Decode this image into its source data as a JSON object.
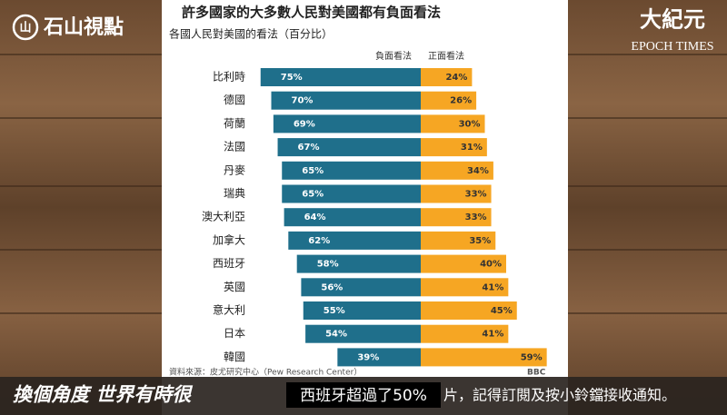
{
  "logo": "石山視點",
  "brand": {
    "chinese": "大紀元",
    "english": "EPOCH TIMES"
  },
  "chart_data": {
    "type": "bar",
    "title": "許多國家的大多數人民對美國都有負面看法",
    "subtitle": "各國人民對美國的看法（百分比）",
    "categories": [
      "比利時",
      "德國",
      "荷蘭",
      "法國",
      "丹麥",
      "瑞典",
      "澳大利亞",
      "加拿大",
      "西班牙",
      "英國",
      "意大利",
      "日本",
      "韓國"
    ],
    "series": [
      {
        "name": "負面看法",
        "color": "#1f6f8b",
        "values": [
          75,
          70,
          69,
          67,
          65,
          65,
          64,
          62,
          58,
          56,
          55,
          54,
          39
        ],
        "value_labels": [
          "75%",
          "70%",
          "69%",
          "67%",
          "65%",
          "65%",
          "64%",
          "62%",
          "58%",
          "56%",
          "55%",
          "54%",
          "39%"
        ]
      },
      {
        "name": "正面看法",
        "color": "#f6a623",
        "values": [
          24,
          26,
          30,
          31,
          34,
          33,
          33,
          35,
          40,
          41,
          45,
          41,
          59
        ],
        "value_labels": [
          "24%",
          "26%",
          "30%",
          "31%",
          "34%",
          "33%",
          "33%",
          "35%",
          "40%",
          "41%",
          "45%",
          "41%",
          "59%"
        ]
      }
    ],
    "source": "資料來源：皮尤研究中心（Pew Research Center）",
    "source_logo": "BBC"
  },
  "ticker": {
    "left": "換個角度 世界有時很",
    "right": "片，記得訂閱及按小鈴鐺接收通知。"
  },
  "caption": "西班牙超過了50%"
}
